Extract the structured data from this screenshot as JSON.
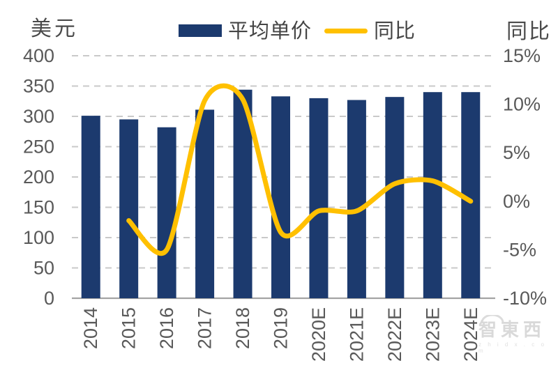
{
  "chart_data": {
    "type": "bar+line combo",
    "title": "",
    "categories": [
      "2014",
      "2015",
      "2016",
      "2017",
      "2018",
      "2019",
      "2020E",
      "2021E",
      "2022E",
      "2023E",
      "2024E"
    ],
    "series": [
      {
        "name": "平均单价",
        "type": "bar",
        "axis": "left",
        "values": [
          301,
          295,
          282,
          311,
          344,
          333,
          330,
          327,
          332,
          340,
          340
        ]
      },
      {
        "name": "同比",
        "type": "line",
        "axis": "right",
        "values": [
          null,
          -2.0,
          -5.0,
          10.4,
          10.5,
          -3.2,
          -1.0,
          -1.0,
          1.8,
          2.1,
          0.0
        ]
      }
    ],
    "left_axis": {
      "title": "美元",
      "min": 0,
      "max": 400,
      "step": 50,
      "ticks": [
        400,
        350,
        300,
        250,
        200,
        150,
        100,
        50,
        0
      ]
    },
    "right_axis": {
      "title": "同比",
      "min": -10,
      "max": 15,
      "step": 5,
      "ticks": [
        "15%",
        "10%",
        "5%",
        "0%",
        "-5%",
        "-10%"
      ],
      "tick_values": [
        15,
        10,
        5,
        0,
        -5,
        -10
      ]
    },
    "grid": "dashed horizontal",
    "legend_position": "top-center"
  },
  "watermark": {
    "text": "智東西",
    "subtext": "z h i d x . c o m"
  },
  "colors": {
    "bar": "#1c3a6e",
    "line": "#ffc000",
    "grid": "#c9c9c9",
    "axis_line": "#a3a3a3",
    "tick_text": "#595959",
    "title_text": "#4a4a4a",
    "watermark": "#d9d9d9"
  }
}
